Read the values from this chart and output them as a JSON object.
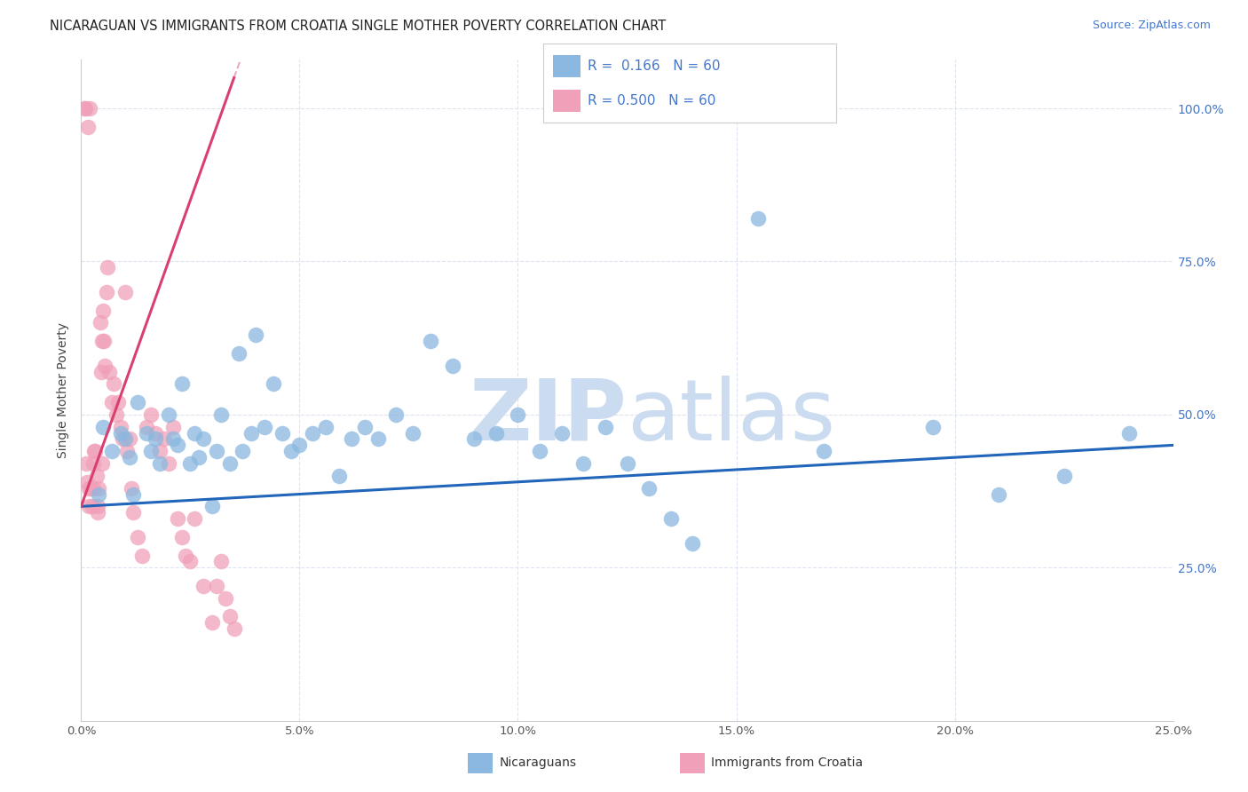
{
  "title": "NICARAGUAN VS IMMIGRANTS FROM CROATIA SINGLE MOTHER POVERTY CORRELATION CHART",
  "source": "Source: ZipAtlas.com",
  "ylabel": "Single Mother Poverty",
  "xlim": [
    0,
    25
  ],
  "ylim": [
    0,
    108
  ],
  "blue_color": "#8ab8e0",
  "pink_color": "#f0a0b8",
  "blue_line_color": "#2266bb",
  "pink_line_color": "#d94070",
  "watermark_color": "#ccdcf0",
  "background_color": "#ffffff",
  "grid_color": "#dde3ef",
  "blue_scatter_x": [
    0.4,
    0.5,
    0.7,
    0.9,
    1.0,
    1.1,
    1.2,
    1.3,
    1.5,
    1.6,
    1.7,
    1.8,
    2.0,
    2.1,
    2.2,
    2.3,
    2.5,
    2.6,
    2.7,
    2.8,
    3.0,
    3.1,
    3.2,
    3.4,
    3.6,
    3.7,
    3.9,
    4.0,
    4.2,
    4.4,
    4.6,
    4.8,
    5.0,
    5.3,
    5.6,
    5.9,
    6.2,
    6.5,
    6.8,
    7.2,
    7.6,
    8.0,
    8.5,
    9.0,
    9.5,
    10.0,
    10.5,
    11.0,
    11.5,
    12.0,
    12.5,
    13.0,
    13.5,
    14.0,
    15.5,
    17.0,
    19.5,
    21.0,
    22.5,
    24.0
  ],
  "blue_scatter_y": [
    37,
    48,
    44,
    47,
    46,
    43,
    37,
    52,
    47,
    44,
    46,
    42,
    50,
    46,
    45,
    55,
    42,
    47,
    43,
    46,
    35,
    44,
    50,
    42,
    60,
    44,
    47,
    63,
    48,
    55,
    47,
    44,
    45,
    47,
    48,
    40,
    46,
    48,
    46,
    50,
    47,
    62,
    58,
    46,
    47,
    50,
    44,
    47,
    42,
    48,
    42,
    38,
    33,
    29,
    82,
    44,
    48,
    37,
    40,
    47
  ],
  "pink_scatter_x": [
    0.08,
    0.1,
    0.12,
    0.15,
    0.18,
    0.2,
    0.22,
    0.25,
    0.28,
    0.3,
    0.32,
    0.35,
    0.38,
    0.4,
    0.43,
    0.45,
    0.48,
    0.5,
    0.53,
    0.55,
    0.58,
    0.6,
    0.65,
    0.7,
    0.75,
    0.8,
    0.85,
    0.9,
    0.95,
    1.0,
    1.05,
    1.1,
    1.15,
    1.2,
    1.3,
    1.4,
    1.5,
    1.6,
    1.7,
    1.8,
    1.9,
    2.0,
    2.1,
    2.2,
    2.3,
    2.4,
    2.5,
    2.6,
    2.8,
    3.0,
    3.1,
    3.2,
    3.3,
    3.4,
    3.5,
    0.13,
    0.17,
    0.27,
    0.37,
    0.47
  ],
  "pink_scatter_y": [
    100,
    100,
    42,
    97,
    38,
    100,
    38,
    35,
    42,
    44,
    44,
    40,
    34,
    38,
    65,
    57,
    62,
    67,
    62,
    58,
    70,
    74,
    57,
    52,
    55,
    50,
    52,
    48,
    46,
    70,
    44,
    46,
    38,
    34,
    30,
    27,
    48,
    50,
    47,
    44,
    46,
    42,
    48,
    33,
    30,
    27,
    26,
    33,
    22,
    16,
    22,
    26,
    20,
    17,
    15,
    39,
    35,
    38,
    35,
    42
  ],
  "blue_R": 0.166,
  "pink_R": 0.5,
  "N": 60
}
